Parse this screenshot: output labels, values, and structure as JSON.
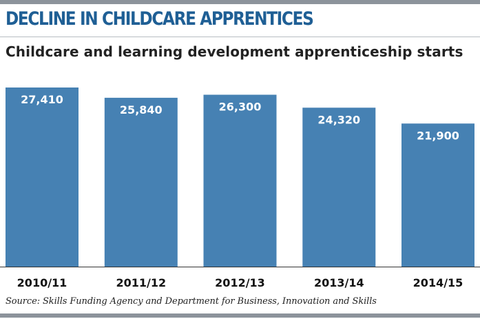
{
  "title": "DECLINE IN CHILDCARE APPRENTICES",
  "subtitle": "Childcare and learning development apprenticeship starts",
  "source": "Source: Skills Funding Agency and Department for Business, Innovation and Skills",
  "colors": {
    "title": "#1f5f95",
    "bar": "#4681b3",
    "bar_label": "#ffffff",
    "axis": "#333333",
    "rule": "#8c939b"
  },
  "chart_data": {
    "type": "bar",
    "categories": [
      "2010/11",
      "2011/12",
      "2012/13",
      "2013/14",
      "2014/15"
    ],
    "values": [
      27410,
      25840,
      26300,
      24320,
      21900
    ],
    "value_labels": [
      "27,410",
      "25,840",
      "26,300",
      "24,320",
      "21,900"
    ],
    "ylim": [
      0,
      27410
    ],
    "grid": false,
    "legend": "none"
  }
}
